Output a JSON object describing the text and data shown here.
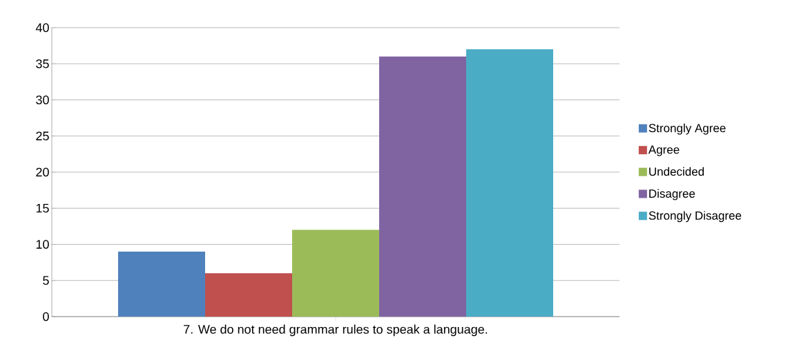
{
  "chart_data": {
    "type": "bar",
    "categories": [
      "7. We do not need grammar rules to speak a language."
    ],
    "series": [
      {
        "name": "Strongly Agree",
        "color": "#4f81bd",
        "values": [
          9
        ]
      },
      {
        "name": "Agree",
        "color": "#c0504d",
        "values": [
          6
        ]
      },
      {
        "name": "Undecided",
        "color": "#9bbb59",
        "values": [
          12
        ]
      },
      {
        "name": "Disagree",
        "color": "#8064a2",
        "values": [
          36
        ]
      },
      {
        "name": "Strongly Disagree",
        "color": "#4bacc6",
        "values": [
          37
        ]
      }
    ],
    "ylim": [
      0,
      40
    ],
    "yticks": [
      0,
      5,
      10,
      15,
      20,
      25,
      30,
      35,
      40
    ],
    "grid": "y",
    "legend": "right"
  }
}
